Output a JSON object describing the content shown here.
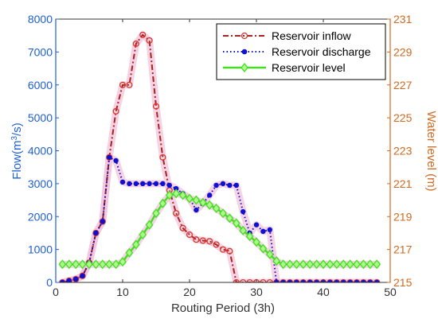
{
  "chart_data": {
    "type": "line",
    "x_label": "Routing Period (3h)",
    "y_left_label_main": "Flow(m",
    "y_left_label_sup": "3",
    "y_left_label_tail": "/s)",
    "y_right_label": "Water level (m)",
    "xlim": [
      0,
      50
    ],
    "y_left_lim": [
      0,
      8000
    ],
    "y_right_lim": [
      215,
      231
    ],
    "x_ticks": [
      "0",
      "10",
      "20",
      "30",
      "40",
      "50"
    ],
    "y_left_ticks": [
      "0",
      "1000",
      "2000",
      "3000",
      "4000",
      "5000",
      "6000",
      "7000",
      "8000"
    ],
    "y_right_ticks": [
      "215",
      "217",
      "219",
      "221",
      "223",
      "225",
      "227",
      "229",
      "231"
    ],
    "grid": false,
    "legend_position": "top-right",
    "colors": {
      "left_axis": "#1f5fd0",
      "right_axis": "#d2691e",
      "inflow": "#a8231d",
      "discharge": "#1010d0",
      "level": "#44dd22",
      "highlight": "#f2c4dc",
      "axes": "#333333"
    },
    "series": [
      {
        "name": "Reservoir inflow",
        "axis": "left",
        "style": "dash-dot",
        "marker": "open-circle",
        "x": [
          1,
          2,
          3,
          4,
          5,
          6,
          7,
          8,
          9,
          10,
          11,
          12,
          13,
          14,
          15,
          16,
          17,
          18,
          19,
          20,
          21,
          22,
          23,
          24,
          25,
          26,
          27,
          28,
          29,
          30,
          31,
          32,
          33,
          34,
          35,
          36,
          37,
          38,
          39,
          40,
          41,
          42,
          43,
          44,
          45,
          46,
          47,
          48
        ],
        "y": [
          0,
          50,
          100,
          200,
          600,
          1500,
          1850,
          3800,
          5200,
          6000,
          6000,
          7250,
          7520,
          7350,
          5350,
          3800,
          2800,
          2100,
          1650,
          1450,
          1300,
          1270,
          1250,
          1150,
          1000,
          950,
          0,
          0,
          0,
          0,
          0,
          0,
          0,
          0,
          0,
          0,
          0,
          0,
          0,
          0,
          0,
          0,
          0,
          0,
          0,
          0,
          0,
          0
        ]
      },
      {
        "name": "Reservoir discharge",
        "axis": "left",
        "style": "dotted",
        "marker": "filled-circle",
        "x": [
          1,
          2,
          3,
          4,
          5,
          6,
          7,
          8,
          9,
          10,
          11,
          12,
          13,
          14,
          15,
          16,
          17,
          18,
          19,
          20,
          21,
          22,
          23,
          24,
          25,
          26,
          27,
          28,
          29,
          30,
          31,
          32,
          33,
          34,
          35,
          36,
          37,
          38,
          39,
          40,
          41,
          42,
          43,
          44,
          45,
          46,
          47,
          48
        ],
        "y": [
          0,
          50,
          100,
          200,
          600,
          1500,
          1850,
          3800,
          3700,
          3050,
          3000,
          3000,
          3000,
          3000,
          3000,
          3000,
          2950,
          2850,
          2700,
          2550,
          2200,
          2400,
          2650,
          2950,
          3000,
          2950,
          2950,
          2150,
          1500,
          1750,
          1550,
          1600,
          0,
          0,
          0,
          0,
          0,
          0,
          0,
          0,
          0,
          0,
          0,
          0,
          0,
          0,
          0,
          0
        ]
      },
      {
        "name": "Reservoir level",
        "axis": "right",
        "style": "solid",
        "marker": "diamond",
        "x": [
          1,
          2,
          3,
          4,
          5,
          6,
          7,
          8,
          9,
          10,
          11,
          12,
          13,
          14,
          15,
          16,
          17,
          18,
          19,
          20,
          21,
          22,
          23,
          24,
          25,
          26,
          27,
          28,
          29,
          30,
          31,
          32,
          33,
          34,
          35,
          36,
          37,
          38,
          39,
          40,
          41,
          42,
          43,
          44,
          45,
          46,
          47,
          48
        ],
        "y": [
          216.1,
          216.1,
          216.1,
          216.1,
          216.1,
          216.1,
          216.1,
          216.1,
          216.1,
          216.25,
          216.8,
          217.3,
          217.9,
          218.5,
          219.2,
          219.8,
          220.3,
          220.4,
          220.3,
          220.1,
          220.0,
          219.85,
          219.7,
          219.5,
          219.2,
          218.9,
          218.6,
          218.15,
          217.8,
          217.45,
          217.05,
          216.7,
          216.3,
          216.1,
          216.1,
          216.1,
          216.1,
          216.1,
          216.1,
          216.1,
          216.1,
          216.1,
          216.1,
          216.1,
          216.1,
          216.1,
          216.1,
          216.1
        ]
      }
    ]
  }
}
